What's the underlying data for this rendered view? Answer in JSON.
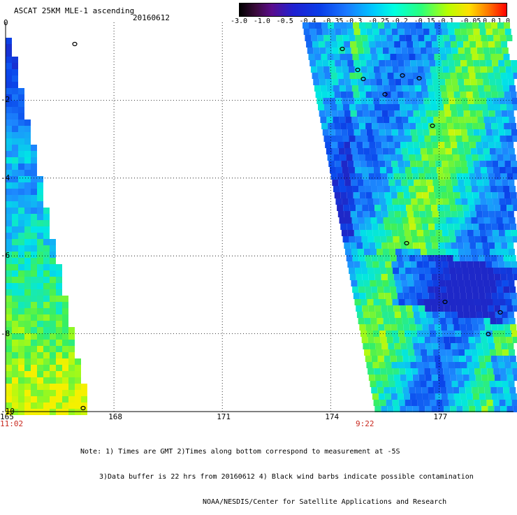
{
  "header": {
    "title": "ASCAT 25KM MLE-1 ascending",
    "date": "20160612"
  },
  "colorbar": {
    "labels": [
      "-3.0",
      "-1.0",
      "-0.5",
      "-0.4",
      "-0.35",
      "-0.3",
      "-0.25",
      "-0.2",
      "-0.15",
      "-0.1",
      "-0.05",
      "0.0",
      "1.0"
    ]
  },
  "axes": {
    "y_top_label": "0",
    "y_labels": [
      "-2",
      "-4",
      "-6",
      "-8",
      "-10"
    ],
    "x_labels": [
      "165",
      "168",
      "171",
      "174",
      "177"
    ]
  },
  "times": {
    "left": "11:02",
    "middle": "9:22"
  },
  "notes": [
    "Note: 1) Times are GMT 2)Times along bottom correspond to measurement at -5S",
    "3)Data buffer is 22 hrs from 20160612 4) Black wind barbs indicate possible contamination",
    "NOAA/NESDIS/Center for Satellite Applications and Research"
  ],
  "colors": {
    "low": "#0a30e0",
    "mid": "#00e8d8",
    "high": "#40f040",
    "highest": "#f0f000",
    "time_label": "#c8281e"
  },
  "map_data": {
    "lon_range": [
      165,
      179.5
    ],
    "lat_range": [
      -10,
      0
    ],
    "swaths": [
      "west swath 165-167.5E",
      "east swath 173.5-179.5E"
    ]
  }
}
